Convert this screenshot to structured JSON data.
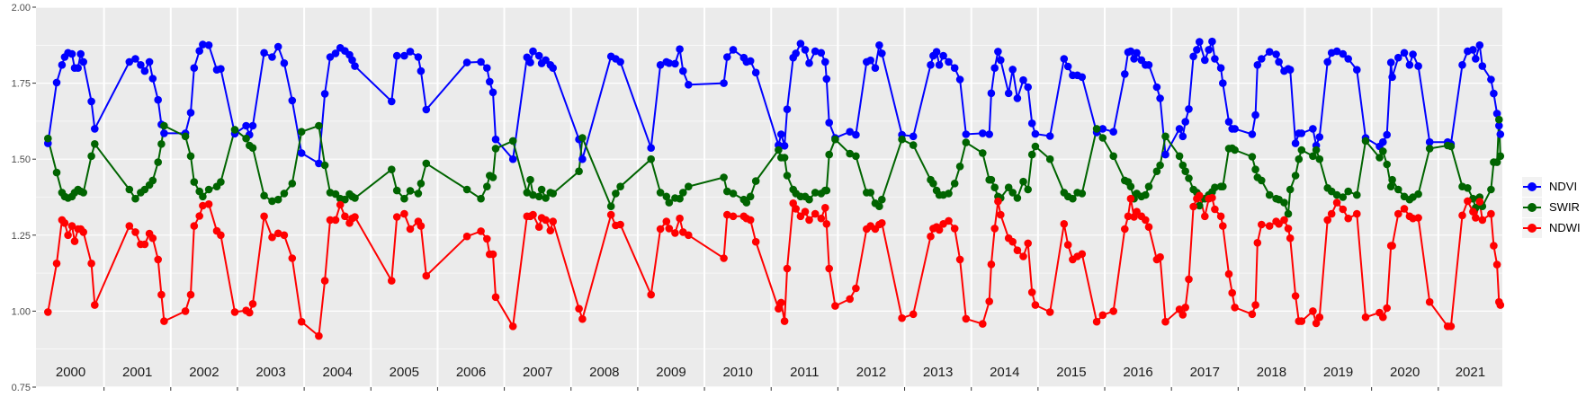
{
  "chart_data": {
    "type": "line",
    "title": "",
    "xlabel": "",
    "ylabel": "",
    "xlim": [
      1999.98,
      2021.96
    ],
    "ylim": [
      0.75,
      2.0
    ],
    "yticks": [
      "0.75",
      "1.00",
      "1.25",
      "1.50",
      "1.75",
      "2.00"
    ],
    "ytick_values": [
      0.75,
      1.0,
      1.25,
      1.5,
      1.75,
      2.0
    ],
    "year_labels": [
      "2000",
      "2001",
      "2002",
      "2003",
      "2004",
      "2005",
      "2006",
      "2007",
      "2008",
      "2009",
      "2010",
      "2011",
      "2012",
      "2013",
      "2014",
      "2015",
      "2016",
      "2017",
      "2018",
      "2019",
      "2020",
      "2021"
    ],
    "grid": true,
    "legend_position": "right",
    "series": [
      {
        "name": "NDVI",
        "color": "#0000FF",
        "column": 1
      },
      {
        "name": "SWIR",
        "color": "#006400",
        "column": 2
      },
      {
        "name": "NDWI",
        "color": "#FF0000",
        "column": 3
      }
    ],
    "columns": [
      "date",
      "NDVI",
      "SWIR",
      "NDWI"
    ],
    "records": [
      [
        2000.16,
        1.552,
        1.568,
        0.997
      ],
      [
        2000.29,
        1.752,
        1.456,
        1.157
      ],
      [
        2000.37,
        1.81,
        1.39,
        1.3
      ],
      [
        2000.41,
        1.836,
        1.377,
        1.29
      ],
      [
        2000.46,
        1.85,
        1.372,
        1.25
      ],
      [
        2000.52,
        1.846,
        1.377,
        1.28
      ],
      [
        2000.56,
        1.8,
        1.39,
        1.23
      ],
      [
        2000.61,
        1.8,
        1.4,
        1.27
      ],
      [
        2000.65,
        1.846,
        1.394,
        1.27
      ],
      [
        2000.69,
        1.82,
        1.39,
        1.26
      ],
      [
        2000.81,
        1.69,
        1.51,
        1.157
      ],
      [
        2000.86,
        1.6,
        1.55,
        1.02
      ],
      [
        2001.38,
        1.82,
        1.4,
        1.28
      ],
      [
        2001.47,
        1.83,
        1.37,
        1.26
      ],
      [
        2001.55,
        1.81,
        1.39,
        1.22
      ],
      [
        2001.61,
        1.79,
        1.4,
        1.22
      ],
      [
        2001.68,
        1.82,
        1.415,
        1.255
      ],
      [
        2001.73,
        1.765,
        1.43,
        1.24
      ],
      [
        2001.81,
        1.695,
        1.49,
        1.17
      ],
      [
        2001.86,
        1.614,
        1.55,
        1.054
      ],
      [
        2001.9,
        1.585,
        1.61,
        0.967
      ],
      [
        2002.22,
        1.585,
        1.575,
        1.0
      ],
      [
        2002.3,
        1.653,
        1.51,
        1.054
      ],
      [
        2002.35,
        1.8,
        1.425,
        1.28
      ],
      [
        2002.43,
        1.856,
        1.394,
        1.313
      ],
      [
        2002.48,
        1.877,
        1.377,
        1.347
      ],
      [
        2002.57,
        1.875,
        1.4,
        1.352
      ],
      [
        2002.69,
        1.794,
        1.41,
        1.264
      ],
      [
        2002.75,
        1.797,
        1.425,
        1.25
      ],
      [
        2002.96,
        1.584,
        1.597,
        0.997
      ],
      [
        2003.13,
        1.61,
        1.568,
        1.002
      ],
      [
        2003.18,
        1.58,
        1.545,
        0.995
      ],
      [
        2003.23,
        1.61,
        1.537,
        1.024
      ],
      [
        2003.4,
        1.85,
        1.38,
        1.312
      ],
      [
        2003.52,
        1.836,
        1.362,
        1.243
      ],
      [
        2003.61,
        1.87,
        1.367,
        1.256
      ],
      [
        2003.7,
        1.816,
        1.387,
        1.25
      ],
      [
        2003.82,
        1.693,
        1.42,
        1.174
      ],
      [
        2003.96,
        1.52,
        1.59,
        0.965
      ],
      [
        2004.22,
        1.486,
        1.61,
        0.918
      ],
      [
        2004.31,
        1.715,
        1.48,
        1.1
      ],
      [
        2004.39,
        1.836,
        1.39,
        1.3
      ],
      [
        2004.47,
        1.848,
        1.385,
        1.3
      ],
      [
        2004.54,
        1.866,
        1.37,
        1.35
      ],
      [
        2004.61,
        1.856,
        1.367,
        1.312
      ],
      [
        2004.68,
        1.843,
        1.385,
        1.29
      ],
      [
        2004.72,
        1.826,
        1.377,
        1.305
      ],
      [
        2004.76,
        1.806,
        1.372,
        1.31
      ],
      [
        2005.31,
        1.69,
        1.466,
        1.1
      ],
      [
        2005.39,
        1.84,
        1.397,
        1.31
      ],
      [
        2005.5,
        1.84,
        1.37,
        1.32
      ],
      [
        2005.59,
        1.854,
        1.396,
        1.27
      ],
      [
        2005.71,
        1.836,
        1.387,
        1.295
      ],
      [
        2005.75,
        1.79,
        1.42,
        1.28
      ],
      [
        2005.83,
        1.663,
        1.486,
        1.116
      ],
      [
        2006.44,
        1.818,
        1.4,
        1.246
      ],
      [
        2006.65,
        1.82,
        1.37,
        1.263
      ],
      [
        2006.74,
        1.8,
        1.41,
        1.238
      ],
      [
        2006.78,
        1.755,
        1.446,
        1.187
      ],
      [
        2006.83,
        1.72,
        1.44,
        1.187
      ],
      [
        2006.87,
        1.565,
        1.535,
        1.046
      ],
      [
        2007.13,
        1.5,
        1.56,
        0.95
      ],
      [
        2007.34,
        1.835,
        1.39,
        1.312
      ],
      [
        2007.39,
        1.818,
        1.432,
        1.312
      ],
      [
        2007.43,
        1.855,
        1.382,
        1.317
      ],
      [
        2007.52,
        1.84,
        1.377,
        1.277
      ],
      [
        2007.56,
        1.815,
        1.4,
        1.307
      ],
      [
        2007.62,
        1.826,
        1.372,
        1.3
      ],
      [
        2007.69,
        1.81,
        1.39,
        1.265
      ],
      [
        2007.73,
        1.8,
        1.387,
        1.295
      ],
      [
        2008.12,
        1.565,
        1.46,
        1.008
      ],
      [
        2008.17,
        1.5,
        1.57,
        0.974
      ],
      [
        2008.6,
        1.838,
        1.345,
        1.317
      ],
      [
        2008.67,
        1.83,
        1.387,
        1.282
      ],
      [
        2008.74,
        1.82,
        1.41,
        1.285
      ],
      [
        2009.2,
        1.537,
        1.5,
        1.054
      ],
      [
        2009.34,
        1.81,
        1.39,
        1.27
      ],
      [
        2009.43,
        1.82,
        1.377,
        1.295
      ],
      [
        2009.47,
        1.816,
        1.357,
        1.272
      ],
      [
        2009.56,
        1.814,
        1.372,
        1.257
      ],
      [
        2009.63,
        1.862,
        1.37,
        1.305
      ],
      [
        2009.68,
        1.79,
        1.39,
        1.26
      ],
      [
        2009.76,
        1.745,
        1.41,
        1.25
      ],
      [
        2010.29,
        1.75,
        1.44,
        1.174
      ],
      [
        2010.34,
        1.836,
        1.394,
        1.317
      ],
      [
        2010.43,
        1.86,
        1.387,
        1.312
      ],
      [
        2010.59,
        1.834,
        1.367,
        1.312
      ],
      [
        2010.63,
        1.82,
        1.357,
        1.305
      ],
      [
        2010.69,
        1.823,
        1.377,
        1.3
      ],
      [
        2010.77,
        1.785,
        1.428,
        1.228
      ],
      [
        2011.11,
        1.546,
        1.53,
        1.008
      ],
      [
        2011.15,
        1.582,
        1.505,
        1.028
      ],
      [
        2011.2,
        1.544,
        1.505,
        0.967
      ],
      [
        2011.24,
        1.664,
        1.446,
        1.14
      ],
      [
        2011.33,
        1.834,
        1.4,
        1.355
      ],
      [
        2011.37,
        1.848,
        1.387,
        1.337
      ],
      [
        2011.44,
        1.88,
        1.377,
        1.312
      ],
      [
        2011.51,
        1.86,
        1.377,
        1.327
      ],
      [
        2011.57,
        1.816,
        1.367,
        1.3
      ],
      [
        2011.66,
        1.855,
        1.39,
        1.32
      ],
      [
        2011.75,
        1.85,
        1.387,
        1.305
      ],
      [
        2011.81,
        1.82,
        1.397,
        1.34
      ],
      [
        2011.83,
        1.764,
        1.397,
        1.287
      ],
      [
        2011.87,
        1.62,
        1.515,
        1.14
      ],
      [
        2011.96,
        1.57,
        1.565,
        1.017
      ],
      [
        2012.18,
        1.59,
        1.518,
        1.04
      ],
      [
        2012.27,
        1.58,
        1.51,
        1.075
      ],
      [
        2012.43,
        1.82,
        1.39,
        1.27
      ],
      [
        2012.49,
        1.825,
        1.39,
        1.28
      ],
      [
        2012.56,
        1.8,
        1.355,
        1.27
      ],
      [
        2012.62,
        1.875,
        1.345,
        1.285
      ],
      [
        2012.66,
        1.848,
        1.367,
        1.29
      ],
      [
        2012.96,
        1.58,
        1.565,
        0.977
      ],
      [
        2013.13,
        1.575,
        1.546,
        0.99
      ],
      [
        2013.39,
        1.81,
        1.432,
        1.246
      ],
      [
        2013.43,
        1.84,
        1.42,
        1.272
      ],
      [
        2013.48,
        1.853,
        1.397,
        1.277
      ],
      [
        2013.52,
        1.81,
        1.382,
        1.267
      ],
      [
        2013.58,
        1.84,
        1.382,
        1.287
      ],
      [
        2013.66,
        1.82,
        1.387,
        1.297
      ],
      [
        2013.75,
        1.8,
        1.42,
        1.272
      ],
      [
        2013.83,
        1.762,
        1.476,
        1.17
      ],
      [
        2013.92,
        1.582,
        1.555,
        0.975
      ],
      [
        2014.17,
        1.585,
        1.52,
        0.958
      ],
      [
        2014.27,
        1.582,
        1.432,
        1.032
      ],
      [
        2014.3,
        1.717,
        1.432,
        1.154
      ],
      [
        2014.35,
        1.8,
        1.407,
        1.272
      ],
      [
        2014.4,
        1.854,
        1.377,
        1.361
      ],
      [
        2014.44,
        1.826,
        1.372,
        1.317
      ],
      [
        2014.56,
        1.717,
        1.407,
        1.24
      ],
      [
        2014.62,
        1.795,
        1.39,
        1.228
      ],
      [
        2014.69,
        1.7,
        1.372,
        1.2
      ],
      [
        2014.78,
        1.76,
        1.426,
        1.18
      ],
      [
        2014.85,
        1.737,
        1.4,
        1.223
      ],
      [
        2014.91,
        1.618,
        1.515,
        1.062
      ],
      [
        2014.96,
        1.583,
        1.542,
        1.02
      ],
      [
        2015.18,
        1.576,
        1.5,
        0.997
      ],
      [
        2015.39,
        1.83,
        1.39,
        1.287
      ],
      [
        2015.45,
        1.805,
        1.377,
        1.218
      ],
      [
        2015.52,
        1.776,
        1.37,
        1.17
      ],
      [
        2015.59,
        1.776,
        1.39,
        1.18
      ],
      [
        2015.66,
        1.77,
        1.387,
        1.188
      ],
      [
        2015.88,
        1.588,
        1.6,
        0.965
      ],
      [
        2015.97,
        1.6,
        1.57,
        0.987
      ],
      [
        2016.13,
        1.59,
        1.51,
        1.0
      ],
      [
        2016.3,
        1.78,
        1.43,
        1.27
      ],
      [
        2016.35,
        1.852,
        1.425,
        1.312
      ],
      [
        2016.39,
        1.855,
        1.41,
        1.37
      ],
      [
        2016.44,
        1.83,
        1.37,
        1.31
      ],
      [
        2016.48,
        1.85,
        1.387,
        1.327
      ],
      [
        2016.55,
        1.826,
        1.377,
        1.312
      ],
      [
        2016.61,
        1.81,
        1.382,
        1.3
      ],
      [
        2016.66,
        1.81,
        1.41,
        1.277
      ],
      [
        2016.78,
        1.737,
        1.46,
        1.17
      ],
      [
        2016.83,
        1.7,
        1.48,
        1.178
      ],
      [
        2016.91,
        1.515,
        1.575,
        0.965
      ],
      [
        2017.12,
        1.6,
        1.51,
        1.006
      ],
      [
        2017.17,
        1.575,
        1.48,
        0.988
      ],
      [
        2017.21,
        1.623,
        1.46,
        1.012
      ],
      [
        2017.26,
        1.665,
        1.437,
        1.105
      ],
      [
        2017.33,
        1.838,
        1.4,
        1.344
      ],
      [
        2017.38,
        1.86,
        1.39,
        1.37
      ],
      [
        2017.42,
        1.886,
        1.347,
        1.38
      ],
      [
        2017.5,
        1.826,
        1.37,
        1.312
      ],
      [
        2017.56,
        1.86,
        1.382,
        1.37
      ],
      [
        2017.61,
        1.887,
        1.392,
        1.373
      ],
      [
        2017.65,
        1.83,
        1.407,
        1.335
      ],
      [
        2017.74,
        1.8,
        1.41,
        1.312
      ],
      [
        2017.77,
        1.75,
        1.41,
        1.28
      ],
      [
        2017.86,
        1.623,
        1.535,
        1.122
      ],
      [
        2017.91,
        1.6,
        1.536,
        1.06
      ],
      [
        2017.95,
        1.6,
        1.53,
        1.012
      ],
      [
        2018.21,
        1.582,
        1.508,
        0.99
      ],
      [
        2018.26,
        1.645,
        1.466,
        1.02
      ],
      [
        2018.29,
        1.81,
        1.44,
        1.225
      ],
      [
        2018.35,
        1.83,
        1.43,
        1.285
      ],
      [
        2018.47,
        1.853,
        1.382,
        1.28
      ],
      [
        2018.57,
        1.845,
        1.37,
        1.295
      ],
      [
        2018.61,
        1.82,
        1.367,
        1.287
      ],
      [
        2018.69,
        1.79,
        1.357,
        1.3
      ],
      [
        2018.75,
        1.797,
        1.32,
        1.272
      ],
      [
        2018.78,
        1.794,
        1.4,
        1.24
      ],
      [
        2018.86,
        1.552,
        1.446,
        1.05
      ],
      [
        2018.91,
        1.585,
        1.5,
        0.967
      ],
      [
        2018.95,
        1.585,
        1.53,
        0.967
      ],
      [
        2019.12,
        1.6,
        1.51,
        1.0
      ],
      [
        2019.17,
        1.545,
        1.53,
        0.96
      ],
      [
        2019.22,
        1.573,
        1.5,
        0.98
      ],
      [
        2019.34,
        1.82,
        1.405,
        1.3
      ],
      [
        2019.4,
        1.85,
        1.394,
        1.32
      ],
      [
        2019.48,
        1.855,
        1.382,
        1.357
      ],
      [
        2019.57,
        1.846,
        1.375,
        1.335
      ],
      [
        2019.65,
        1.83,
        1.394,
        1.305
      ],
      [
        2019.78,
        1.794,
        1.382,
        1.32
      ],
      [
        2019.91,
        1.57,
        1.56,
        0.98
      ],
      [
        2020.12,
        1.542,
        1.505,
        0.995
      ],
      [
        2020.17,
        1.556,
        1.526,
        0.98
      ],
      [
        2020.23,
        1.58,
        1.483,
        1.01
      ],
      [
        2020.29,
        1.818,
        1.41,
        1.215
      ],
      [
        2020.31,
        1.77,
        1.432,
        1.215
      ],
      [
        2020.4,
        1.834,
        1.4,
        1.32
      ],
      [
        2020.49,
        1.85,
        1.377,
        1.337
      ],
      [
        2020.57,
        1.81,
        1.367,
        1.312
      ],
      [
        2020.62,
        1.845,
        1.375,
        1.305
      ],
      [
        2020.7,
        1.806,
        1.385,
        1.307
      ],
      [
        2020.87,
        1.556,
        1.535,
        1.03
      ],
      [
        2021.14,
        1.556,
        1.545,
        0.95
      ],
      [
        2021.19,
        1.55,
        1.542,
        0.95
      ],
      [
        2021.36,
        1.81,
        1.41,
        1.315
      ],
      [
        2021.44,
        1.855,
        1.405,
        1.362
      ],
      [
        2021.52,
        1.86,
        1.37,
        1.327
      ],
      [
        2021.56,
        1.83,
        1.34,
        1.307
      ],
      [
        2021.62,
        1.875,
        1.375,
        1.36
      ],
      [
        2021.66,
        1.806,
        1.345,
        1.3
      ],
      [
        2021.79,
        1.762,
        1.4,
        1.32
      ],
      [
        2021.83,
        1.716,
        1.49,
        1.215
      ],
      [
        2021.88,
        1.65,
        1.49,
        1.153
      ],
      [
        2021.91,
        1.61,
        1.63,
        1.03
      ],
      [
        2021.93,
        1.582,
        1.51,
        1.02
      ]
    ]
  },
  "legend": {
    "items": [
      {
        "label": "NDVI",
        "color": "#0000FF"
      },
      {
        "label": "SWIR",
        "color": "#006400"
      },
      {
        "label": "NDWI",
        "color": "#FF0000"
      }
    ]
  }
}
